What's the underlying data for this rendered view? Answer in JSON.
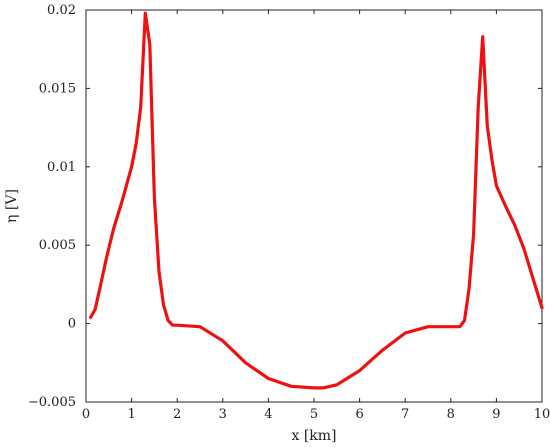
{
  "chart_data": {
    "type": "line",
    "title": "",
    "xlabel": "x [km]",
    "ylabel": "η [V]",
    "xlim": [
      0,
      10
    ],
    "ylim": [
      -0.005,
      0.02
    ],
    "x_ticks": [
      0,
      1,
      2,
      3,
      4,
      5,
      6,
      7,
      8,
      9,
      10
    ],
    "y_ticks": [
      -0.005,
      0,
      0.005,
      0.01,
      0.015,
      0.02
    ],
    "x_tick_labels": [
      "0",
      "1",
      "2",
      "3",
      "4",
      "5",
      "6",
      "7",
      "8",
      "9",
      "10"
    ],
    "y_tick_labels": [
      "−0.005",
      "0",
      "0.005",
      "0.01",
      "0.015",
      "0.02"
    ],
    "grid": false,
    "legend": "none",
    "series": [
      {
        "color": "#ee1111",
        "x": [
          0.1,
          0.2,
          0.3,
          0.45,
          0.6,
          0.8,
          1.0,
          1.1,
          1.2,
          1.3,
          1.4,
          1.5,
          1.6,
          1.7,
          1.8,
          1.9,
          2.0,
          2.5,
          3.0,
          3.5,
          4.0,
          4.5,
          5.0,
          5.2,
          5.5,
          6.0,
          6.5,
          7.0,
          7.5,
          8.0,
          8.2,
          8.3,
          8.4,
          8.5,
          8.6,
          8.7,
          8.8,
          8.9,
          9.0,
          9.2,
          9.4,
          9.6,
          9.8,
          10.0
        ],
        "y": [
          0.0004,
          0.0009,
          0.0022,
          0.0042,
          0.006,
          0.0079,
          0.01,
          0.0115,
          0.0138,
          0.0198,
          0.0178,
          0.008,
          0.0033,
          0.0012,
          0.0002,
          -0.0001,
          -0.0001,
          -0.0002,
          -0.0011,
          -0.0025,
          -0.0035,
          -0.004,
          -0.0041,
          -0.0041,
          -0.0039,
          -0.003,
          -0.0017,
          -0.0006,
          -0.0002,
          -0.0002,
          -0.0002,
          0.0002,
          0.0022,
          0.0057,
          0.0138,
          0.0183,
          0.0126,
          0.0105,
          0.0088,
          0.0075,
          0.0063,
          0.0048,
          0.0029,
          0.001
        ]
      }
    ]
  }
}
